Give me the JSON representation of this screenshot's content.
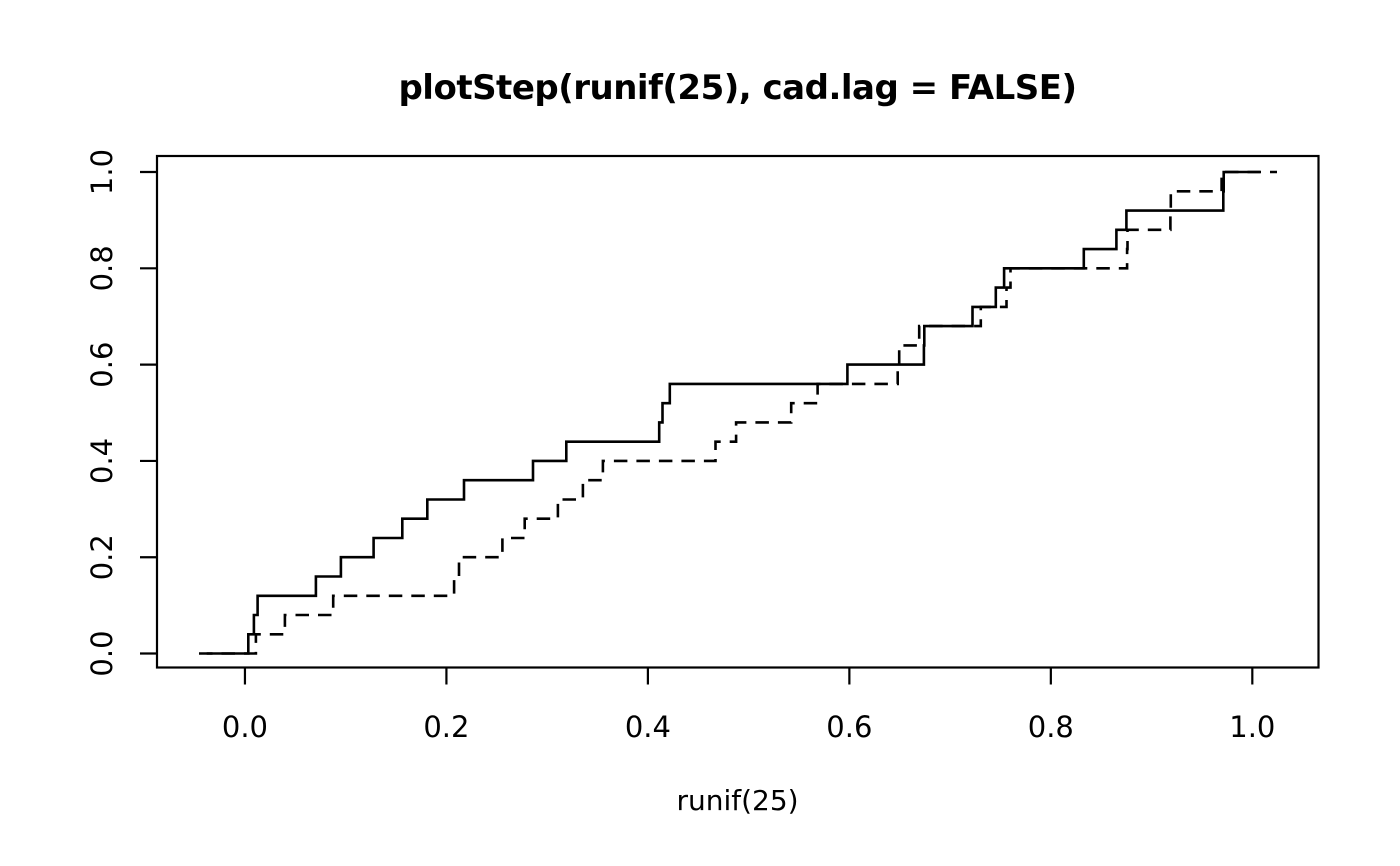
{
  "title": "plotStep(runif(25), cad.lag = FALSE)",
  "colors": {
    "background": "#ffffff",
    "foreground": "#000000"
  },
  "chart_data": {
    "type": "line",
    "subtype": "step",
    "title": "plotStep(runif(25), cad.lag = FALSE)",
    "xlabel": "runif(25)",
    "ylabel": "",
    "grid": false,
    "legend": null,
    "frame": true,
    "xlim": [
      -0.0873,
      1.0657
    ],
    "ylim": [
      -0.029,
      1.0333
    ],
    "x_ticks": {
      "values": [
        0.0,
        0.2,
        0.4,
        0.6,
        0.8,
        1.0
      ],
      "labels": [
        "0.0",
        "0.2",
        "0.4",
        "0.6",
        "0.8",
        "1.0"
      ]
    },
    "y_ticks": {
      "values": [
        0.0,
        0.2,
        0.4,
        0.6,
        0.8,
        1.0
      ],
      "labels": [
        "0.0",
        "0.2",
        "0.4",
        "0.6",
        "0.8",
        "1.0"
      ]
    },
    "series": [
      {
        "name": "step-solid",
        "style": "solid",
        "color": "#000000",
        "start_x": -0.038,
        "end_x": 1.008,
        "points": [
          [
            0.0033,
            0.04
          ],
          [
            0.0089,
            0.08
          ],
          [
            0.0126,
            0.12
          ],
          [
            0.0704,
            0.16
          ],
          [
            0.0953,
            0.2
          ],
          [
            0.1277,
            0.24
          ],
          [
            0.1562,
            0.28
          ],
          [
            0.181,
            0.32
          ],
          [
            0.2175,
            0.36
          ],
          [
            0.2859,
            0.4
          ],
          [
            0.319,
            0.44
          ],
          [
            0.4112,
            0.48
          ],
          [
            0.4145,
            0.52
          ],
          [
            0.4217,
            0.56
          ],
          [
            0.598,
            0.6
          ],
          [
            0.674,
            0.64
          ],
          [
            0.6744,
            0.68
          ],
          [
            0.7222,
            0.72
          ],
          [
            0.7454,
            0.76
          ],
          [
            0.7536,
            0.8
          ],
          [
            0.8327,
            0.84
          ],
          [
            0.8651,
            0.88
          ],
          [
            0.875,
            0.92
          ],
          [
            0.9712,
            0.96
          ],
          [
            0.9716,
            1.0
          ]
        ]
      },
      {
        "name": "step-dashed",
        "style": "dashed",
        "color": "#000000",
        "start_x": -0.0456,
        "end_x": 1.0245,
        "points": [
          [
            0.0109,
            0.04
          ],
          [
            0.0397,
            0.08
          ],
          [
            0.0876,
            0.12
          ],
          [
            0.2076,
            0.16
          ],
          [
            0.2125,
            0.2
          ],
          [
            0.2556,
            0.24
          ],
          [
            0.2777,
            0.28
          ],
          [
            0.3107,
            0.32
          ],
          [
            0.3355,
            0.36
          ],
          [
            0.3553,
            0.4
          ],
          [
            0.4671,
            0.44
          ],
          [
            0.4876,
            0.48
          ],
          [
            0.5423,
            0.52
          ],
          [
            0.5685,
            0.56
          ],
          [
            0.648,
            0.6
          ],
          [
            0.6495,
            0.64
          ],
          [
            0.6693,
            0.68
          ],
          [
            0.7305,
            0.72
          ],
          [
            0.756,
            0.76
          ],
          [
            0.76,
            0.8
          ],
          [
            0.8757,
            0.84
          ],
          [
            0.8761,
            0.88
          ],
          [
            0.9187,
            0.92
          ],
          [
            0.9191,
            0.96
          ],
          [
            0.9695,
            1.0
          ]
        ]
      }
    ]
  }
}
